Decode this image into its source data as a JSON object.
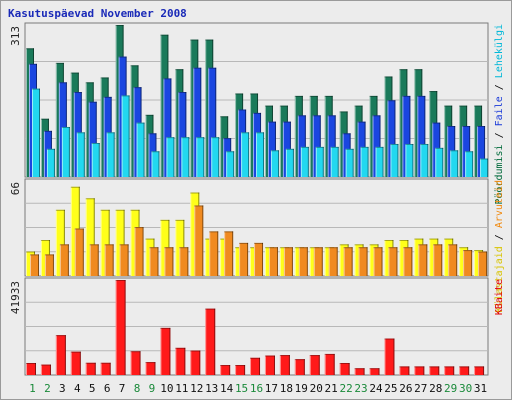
{
  "chart_data": {
    "type": "bar",
    "title": "Kasutuspäevad November 2008",
    "categories": [
      "1",
      "2",
      "3",
      "4",
      "5",
      "6",
      "7",
      "8",
      "9",
      "10",
      "11",
      "12",
      "13",
      "14",
      "15",
      "16",
      "17",
      "18",
      "19",
      "20",
      "21",
      "22",
      "23",
      "24",
      "25",
      "26",
      "27",
      "28",
      "29",
      "30",
      "31"
    ],
    "weekend_days": [
      "1",
      "2",
      "8",
      "9",
      "15",
      "16",
      "22",
      "23",
      "29",
      "30"
    ],
    "panels": [
      {
        "id": "top",
        "ymax_label": "313",
        "ymax": 313,
        "right_label_parts": [
          {
            "text": "Pöördumisi",
            "color": "#006a3a"
          },
          {
            "text": " / ",
            "color": "#000000"
          },
          {
            "text": "Faile",
            "color": "#1a3ad8"
          },
          {
            "text": " / ",
            "color": "#000000"
          },
          {
            "text": "Lehekülgi",
            "color": "#00b8d8"
          }
        ],
        "series": [
          {
            "name": "Pöördumisi",
            "color": "#1a7a5a",
            "values": [
              265,
              120,
              235,
              215,
              195,
              205,
              313,
              230,
              128,
              293,
              222,
              283,
              283,
              125,
              172,
              172,
              147,
              147,
              167,
              167,
              167,
              135,
              147,
              167,
              207,
              222,
              222,
              177,
              147,
              147,
              147
            ]
          },
          {
            "name": "Faile",
            "color": "#1a46e0",
            "values": [
              233,
              95,
              195,
              175,
              155,
              165,
              248,
              185,
              90,
              203,
              175,
              225,
              225,
              80,
              139,
              132,
              114,
              114,
              127,
              127,
              127,
              90,
              114,
              127,
              158,
              167,
              167,
              112,
              105,
              105,
              105
            ]
          },
          {
            "name": "Lehekülgi",
            "color": "#22d8f0",
            "values": [
              182,
              58,
              103,
              92,
              70,
              92,
              168,
              112,
              53,
              82,
              82,
              82,
              82,
              53,
              92,
              92,
              55,
              58,
              62,
              62,
              62,
              58,
              62,
              62,
              68,
              68,
              68,
              60,
              55,
              53,
              38
            ]
          }
        ]
      },
      {
        "id": "middle",
        "ymax_label": "66",
        "ymax": 66,
        "right_label_parts": [
          {
            "text": "Külastajaid",
            "color": "#d8c400"
          },
          {
            "text": " / ",
            "color": "#000000"
          },
          {
            "text": "Arvuteid",
            "color": "#f08a10"
          }
        ],
        "series": [
          {
            "name": "Külastajaid",
            "color": "#ffff1a",
            "values": [
              17,
              25,
              46,
              62,
              54,
              46,
              46,
              46,
              26,
              39,
              39,
              58,
              26,
              26,
              20,
              20,
              20,
              20,
              20,
              20,
              20,
              22,
              22,
              22,
              25,
              25,
              26,
              26,
              26,
              20,
              18
            ]
          },
          {
            "name": "Arvuteid",
            "color": "#f08a20",
            "values": [
              15,
              15,
              22,
              33,
              22,
              22,
              22,
              34,
              20,
              20,
              20,
              49,
              31,
              31,
              23,
              23,
              20,
              20,
              20,
              20,
              20,
              20,
              20,
              20,
              20,
              20,
              22,
              22,
              22,
              18,
              17
            ]
          }
        ]
      },
      {
        "id": "bottom",
        "ymax_label": "41933",
        "ymax": 41933,
        "right_label_parts": [
          {
            "text": "KBaite",
            "color": "#e00000"
          }
        ],
        "series": [
          {
            "name": "KBaite",
            "color": "#ff1a1a",
            "values": [
              5300,
              4600,
              17600,
              10300,
              5400,
              5400,
              41933,
              10500,
              5700,
              20800,
              12000,
              10800,
              29300,
              4400,
              4400,
              7600,
              8600,
              8800,
              7000,
              8800,
              9300,
              5300,
              3000,
              3000,
              16100,
              3800,
              3800,
              3800,
              3800,
              3800,
              3800
            ]
          }
        ]
      }
    ]
  }
}
